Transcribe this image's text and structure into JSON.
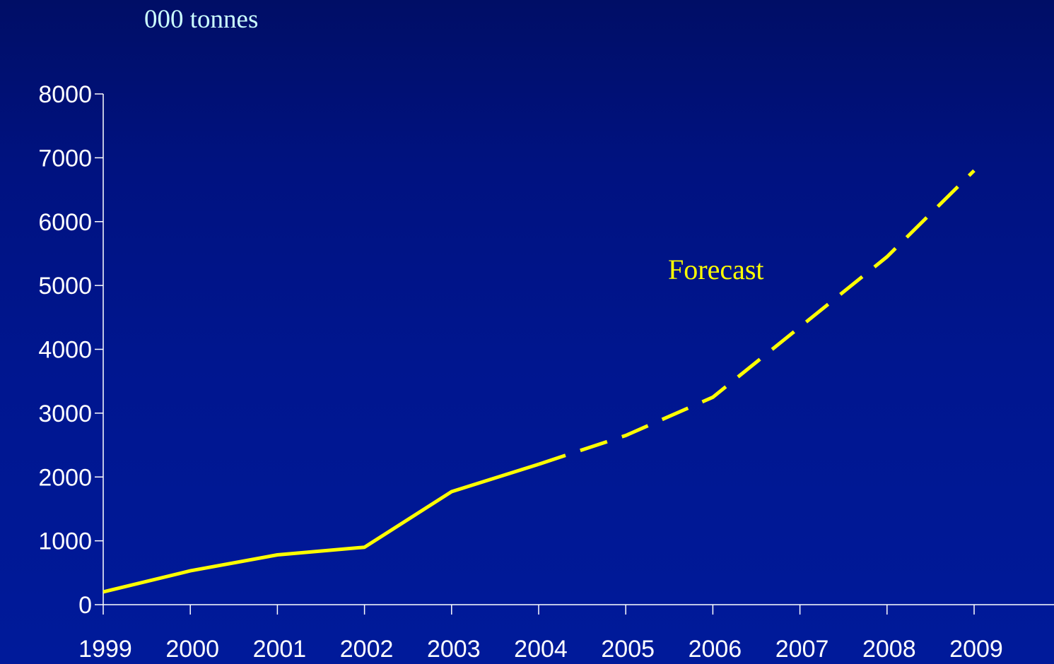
{
  "chart_data": {
    "type": "line",
    "unit_label": "000 tonnes",
    "annotation": "Forecast",
    "x": [
      1999,
      2000,
      2001,
      2002,
      2003,
      2004,
      2005,
      2006,
      2007,
      2008,
      2009
    ],
    "x_tick_labels": [
      "1999",
      "2000",
      "2001",
      "2002",
      "2003",
      "2004",
      "2005",
      "2006",
      "2007",
      "2008",
      "2009"
    ],
    "series": [
      {
        "values": [
          200,
          530,
          780,
          900,
          1770,
          2200,
          null,
          null,
          null,
          null,
          null
        ],
        "style": "solid"
      },
      {
        "values": [
          null,
          null,
          null,
          null,
          null,
          2200,
          2650,
          3250,
          4350,
          5450,
          6800
        ],
        "style": "dashed"
      }
    ],
    "y_tick_labels": [
      "0",
      "1000",
      "2000",
      "3000",
      "4000",
      "5000",
      "6000",
      "7000",
      "8000"
    ],
    "ylim": [
      0,
      8000
    ],
    "grid": false,
    "colors": {
      "background": "#00148a",
      "line": "#ffff00",
      "axis": "#ffffff",
      "tick_text": "#ffffff",
      "unit_label": "#ccffff",
      "annotation": "#ffff00"
    }
  }
}
